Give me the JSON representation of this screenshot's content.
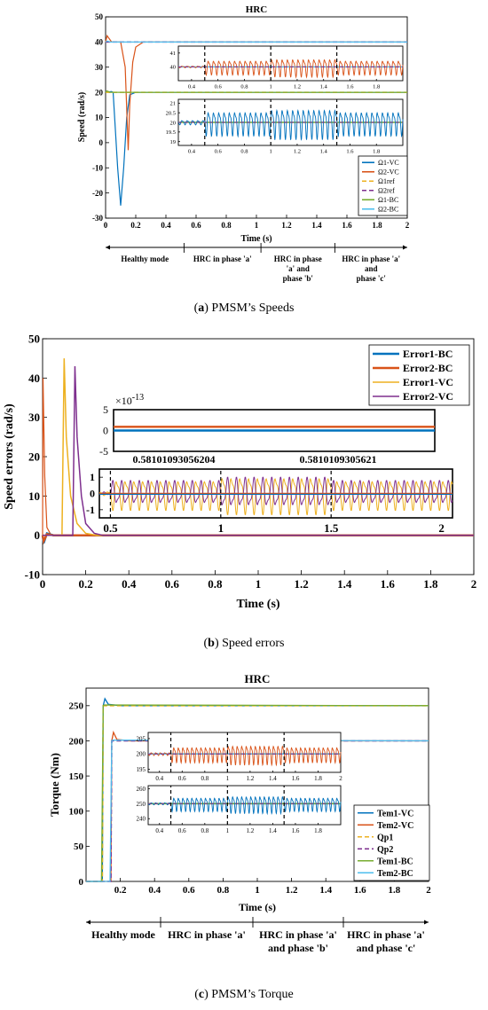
{
  "figure": {
    "captions": [
      {
        "prefix": "(",
        "letter": "a",
        "text": ") PMSM’s Speeds"
      },
      {
        "prefix": "(",
        "letter": "b",
        "text": ") Speed errors"
      },
      {
        "prefix": "(",
        "letter": "c",
        "text": ") PMSM’s Torque"
      }
    ],
    "phases_a": [
      "Healthy mode",
      "HRC in phase 'a'",
      [
        "HRC in phase",
        "'a' and",
        "phase 'b'"
      ],
      [
        "HRC in phase 'a'",
        "and",
        "phase 'c'"
      ]
    ],
    "phases_c": [
      "Healthy mode",
      "HRC in phase 'a'",
      [
        "HRC in phase 'a'",
        "and phase 'b'"
      ],
      [
        "HRC in phase 'a'",
        "and phase 'c'"
      ]
    ]
  },
  "colors": {
    "blue": "#0072BD",
    "orange": "#D95319",
    "yellow": "#EDB120",
    "purple": "#7E2F8E",
    "green": "#77AC30",
    "cyan": "#4DBEEE"
  },
  "chart_data": [
    {
      "type": "line",
      "title": "HRC",
      "xlabel": "Time (s)",
      "ylabel": "Speed (rad/s)",
      "xlim": [
        0,
        2
      ],
      "ylim": [
        -30,
        50
      ],
      "xticks": [
        "0",
        "0.2",
        "0.4",
        "0.6",
        "0.8",
        "1",
        "1.2",
        "1.4",
        "1.6",
        "1.8",
        "2"
      ],
      "yticks": [
        "-30",
        "-20",
        "-10",
        "0",
        "10",
        "20",
        "30",
        "40",
        "50"
      ],
      "legend_position": "bottom-right",
      "series": [
        {
          "name": "Ω1-VC",
          "color": "#0072BD",
          "style": "solid",
          "x": [
            0,
            0.04,
            0.05,
            0.06,
            0.08,
            0.1,
            0.12,
            0.14,
            0.16,
            0.2,
            2
          ],
          "y": [
            20,
            20.3,
            20,
            10,
            -10,
            -25,
            -10,
            10,
            19,
            20,
            20
          ]
        },
        {
          "name": "Ω2-VC",
          "color": "#D95319",
          "style": "solid",
          "x": [
            0,
            0.01,
            0.04,
            0.1,
            0.13,
            0.15,
            0.16,
            0.18,
            0.2,
            0.25,
            2
          ],
          "y": [
            40,
            42.5,
            40,
            40,
            30,
            -3,
            15,
            32,
            38,
            40,
            40
          ]
        },
        {
          "name": "Ω1ref",
          "color": "#EDB120",
          "style": "dashed",
          "x": [
            0,
            2
          ],
          "y": [
            20,
            20
          ]
        },
        {
          "name": "Ω2ref",
          "color": "#7E2F8E",
          "style": "dashed",
          "x": [
            0,
            2
          ],
          "y": [
            40,
            40
          ]
        },
        {
          "name": "Ω1-BC",
          "color": "#77AC30",
          "style": "solid",
          "x": [
            0,
            0.01,
            0.03,
            2
          ],
          "y": [
            20,
            20.6,
            20,
            20
          ]
        },
        {
          "name": "Ω2-BC",
          "color": "#4DBEEE",
          "style": "solid",
          "x": [
            0,
            0.01,
            0.03,
            2
          ],
          "y": [
            40,
            40.4,
            40,
            40
          ]
        }
      ],
      "insets": [
        {
          "xlim": [
            0.3,
            2
          ],
          "ylim": [
            39,
            41.5
          ],
          "xticks": [
            "0.4",
            "0.6",
            "0.8",
            "1",
            "1.2",
            "1.4",
            "1.6",
            "1.8"
          ],
          "yticks": [
            "40",
            "41"
          ],
          "base": 40,
          "amp_healthy": 0.05,
          "amp_fault": 0.45,
          "osc_color": "#D95319"
        },
        {
          "xlim": [
            0.3,
            2
          ],
          "ylim": [
            18.8,
            21.2
          ],
          "xticks": [
            "0.4",
            "0.6",
            "0.8",
            "1",
            "1.2",
            "1.4",
            "1.6",
            "1.8"
          ],
          "yticks": [
            "19",
            "19.5",
            "20",
            "20.5",
            "21"
          ],
          "base": 20,
          "amp_healthy": 0.1,
          "amp_fault": 0.55,
          "osc_color": "#0072BD"
        }
      ]
    },
    {
      "type": "line",
      "title": "",
      "xlabel": "Time (s)",
      "ylabel": "Speed errors (rad/s)",
      "xlim": [
        0,
        2
      ],
      "ylim": [
        -10,
        50
      ],
      "xticks": [
        "0",
        "0.2",
        "0.4",
        "0.6",
        "0.8",
        "1",
        "1.2",
        "1.4",
        "1.6",
        "1.8",
        "2"
      ],
      "yticks": [
        "-10",
        "0",
        "10",
        "20",
        "30",
        "40",
        "50"
      ],
      "legend_position": "top-right",
      "series": [
        {
          "name": "Error1-BC",
          "color": "#0072BD",
          "style": "thick",
          "x": [
            0,
            0.005,
            0.02,
            0.05,
            2
          ],
          "y": [
            0,
            -2,
            0.5,
            0,
            0
          ]
        },
        {
          "name": "Error2-BC",
          "color": "#D95319",
          "style": "thick",
          "x": [
            0,
            0.005,
            0.02,
            0.05,
            2
          ],
          "y": [
            0,
            -1.5,
            0.3,
            0,
            0
          ]
        },
        {
          "name": "Error1-VC",
          "color": "#EDB120",
          "style": "solid",
          "x": [
            0,
            0.09,
            0.1,
            0.11,
            0.13,
            0.16,
            0.2,
            0.25,
            2
          ],
          "y": [
            0,
            0,
            45,
            25,
            10,
            3,
            0.5,
            0,
            0
          ]
        },
        {
          "name": "Error2-VC",
          "color": "#7E2F8E",
          "style": "solid",
          "x": [
            0,
            0.14,
            0.15,
            0.16,
            0.18,
            0.2,
            0.24,
            0.28,
            2
          ],
          "y": [
            0,
            0,
            43,
            25,
            10,
            3,
            0.5,
            0,
            0
          ]
        }
      ],
      "init_spike": {
        "x": [
          0,
          0.002,
          0.01,
          0.02,
          0.04
        ],
        "y": [
          0,
          40,
          15,
          2,
          0
        ]
      },
      "insets": [
        {
          "ylim": [
            -5,
            5
          ],
          "yticks": [
            "5",
            "0",
            "-5"
          ],
          "exponent": "×10",
          "exponent_power": "-13",
          "xticks": [
            "0.58101093056204",
            "0.5810109305621"
          ],
          "lines": [
            {
              "color": "#D95319",
              "y": 0.9
            },
            {
              "color": "#0072BD",
              "y": 0
            }
          ]
        },
        {
          "xlim": [
            0.45,
            2.05
          ],
          "ylim": [
            -1.5,
            1.5
          ],
          "yticks": [
            "1",
            "0",
            "-1"
          ],
          "xticks": [
            "0.5",
            "1",
            "1.5",
            "2"
          ],
          "amp_healthy": 0.1,
          "amp_fault": 0.8
        }
      ]
    },
    {
      "type": "line",
      "title": "HRC",
      "xlabel": "Time (s)",
      "ylabel": "Torque (Nm)",
      "xlim": [
        0,
        2
      ],
      "ylim": [
        0,
        275
      ],
      "xticks": [
        "0.2",
        "0.4",
        "0.6",
        "0.8",
        "1",
        "1.2",
        "1.4",
        "1.6",
        "1.8",
        "2"
      ],
      "yticks": [
        "0",
        "50",
        "100",
        "150",
        "200",
        "250"
      ],
      "legend_position": "bottom-right",
      "series": [
        {
          "name": "Tem1-VC",
          "color": "#0072BD",
          "style": "solid",
          "x": [
            0,
            0.095,
            0.1,
            0.11,
            0.13,
            0.2,
            2
          ],
          "y": [
            0,
            0,
            250,
            260,
            252,
            250,
            250
          ]
        },
        {
          "name": "Tem2-VC",
          "color": "#D95319",
          "style": "solid",
          "x": [
            0,
            0.145,
            0.15,
            0.16,
            0.18,
            0.25,
            2
          ],
          "y": [
            0,
            0,
            200,
            212,
            202,
            200,
            200
          ]
        },
        {
          "name": "Qp1",
          "color": "#EDB120",
          "style": "dashed",
          "x": [
            0,
            0.095,
            0.1,
            2
          ],
          "y": [
            0,
            0,
            250,
            250
          ]
        },
        {
          "name": "Qp2",
          "color": "#7E2F8E",
          "style": "dashed",
          "x": [
            0,
            0.145,
            0.15,
            2
          ],
          "y": [
            0,
            0,
            200,
            200
          ]
        },
        {
          "name": "Tem1-BC",
          "color": "#77AC30",
          "style": "solid",
          "x": [
            0,
            0.09,
            0.1,
            0.105,
            2
          ],
          "y": [
            0,
            0,
            250,
            251,
            250
          ]
        },
        {
          "name": "Tem2-BC",
          "color": "#4DBEEE",
          "style": "solid",
          "x": [
            0,
            0.14,
            0.15,
            0.155,
            2
          ],
          "y": [
            0,
            0,
            200,
            201,
            200
          ]
        }
      ],
      "insets": [
        {
          "xlim": [
            0.3,
            2
          ],
          "ylim": [
            194,
            207
          ],
          "xticks": [
            "0.4",
            "0.6",
            "0.8",
            "1",
            "1.2",
            "1.4",
            "1.6",
            "1.8",
            "2"
          ],
          "yticks": [
            "195",
            "200",
            "205"
          ],
          "base": 200,
          "amp_healthy": 0.4,
          "amp_fault": 2.2,
          "osc_color": "#D95319"
        },
        {
          "xlim": [
            0.3,
            2
          ],
          "ylim": [
            236,
            262
          ],
          "xticks": [
            "0.4",
            "0.6",
            "0.8",
            "1",
            "1.2",
            "1.4",
            "1.6",
            "1.8"
          ],
          "yticks": [
            "240",
            "250",
            "260"
          ],
          "base": 250,
          "amp_healthy": 0.6,
          "amp_fault": 4,
          "osc_color": "#0072BD"
        }
      ]
    }
  ]
}
